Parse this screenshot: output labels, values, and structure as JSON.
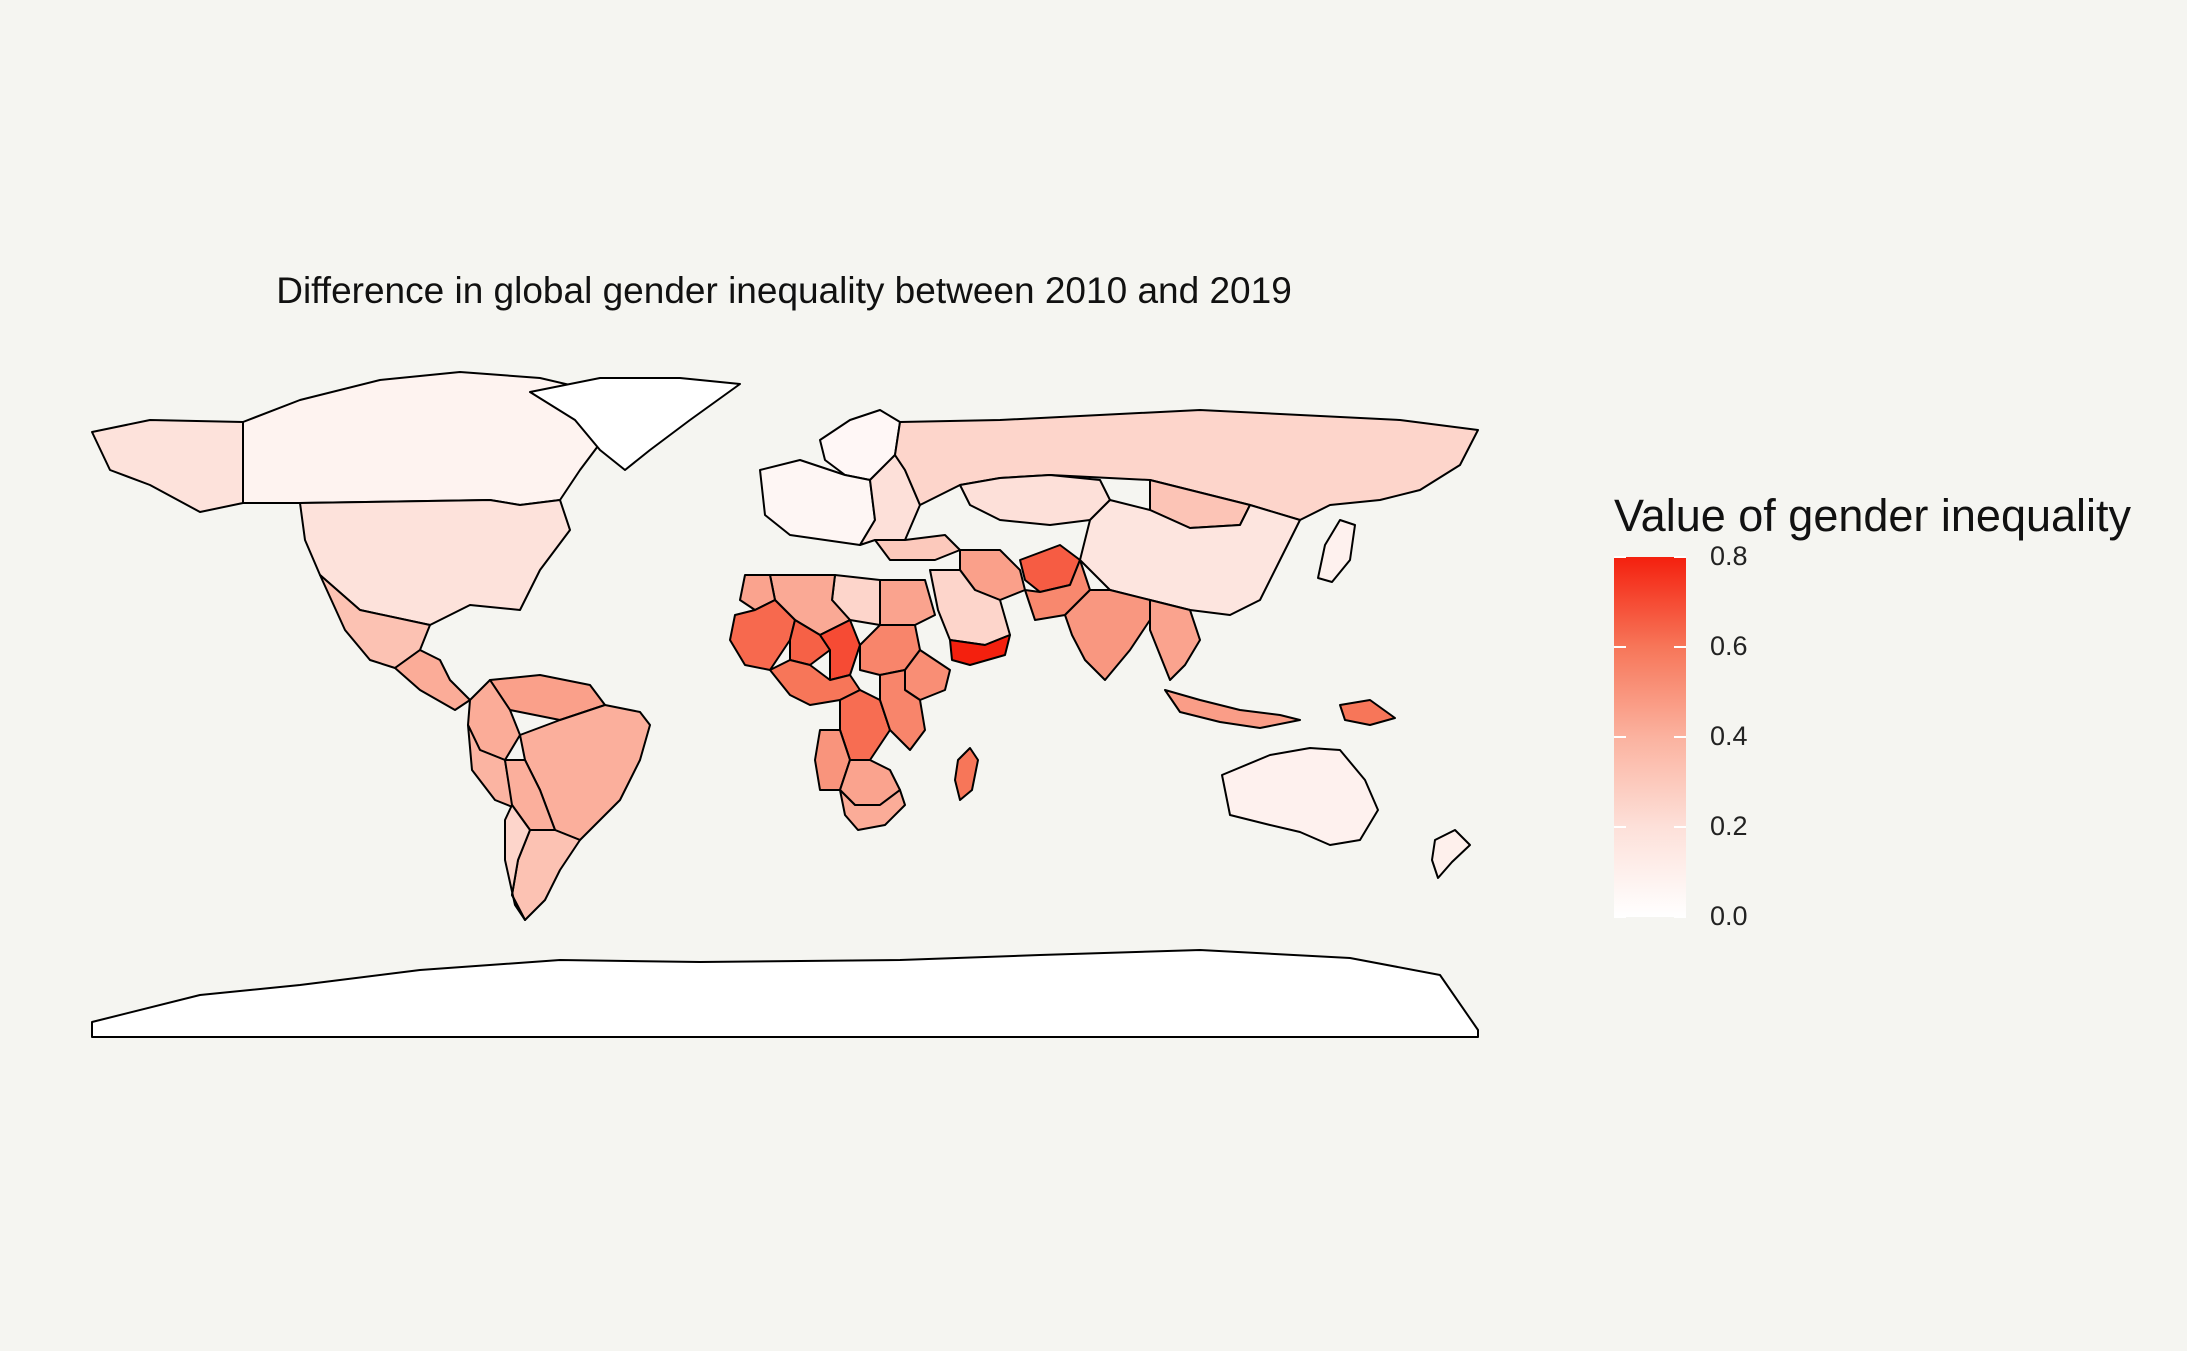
{
  "title": "Difference in global gender inequality between 2010 and 2019",
  "legend": {
    "title": "Value of gender inequality",
    "ticks": [
      "0.0",
      "0.2",
      "0.4",
      "0.6",
      "0.8"
    ],
    "range": [
      0,
      0.8
    ]
  },
  "colors": {
    "low": "#ffffff",
    "high": "#f4200e",
    "background": "#f5f5f1",
    "no_data": "#ffffff",
    "border": "#000000"
  },
  "regions": [
    {
      "name": "Canada",
      "value": 0.08
    },
    {
      "name": "Alaska",
      "value": 0.19
    },
    {
      "name": "Greenland",
      "value": null
    },
    {
      "name": "United States",
      "value": 0.19
    },
    {
      "name": "Mexico",
      "value": 0.33
    },
    {
      "name": "Central America",
      "value": 0.42
    },
    {
      "name": "Venezuela",
      "value": 0.46
    },
    {
      "name": "Colombia",
      "value": 0.42
    },
    {
      "name": "Brazil",
      "value": 0.41
    },
    {
      "name": "Peru",
      "value": 0.39
    },
    {
      "name": "Bolivia",
      "value": 0.41
    },
    {
      "name": "Argentina",
      "value": 0.33
    },
    {
      "name": "Chile",
      "value": 0.25
    },
    {
      "name": "Iceland / Nordics",
      "value": 0.05
    },
    {
      "name": "Western Europe",
      "value": 0.06
    },
    {
      "name": "Eastern Europe",
      "value": 0.2
    },
    {
      "name": "Russia",
      "value": 0.25
    },
    {
      "name": "Kazakhstan",
      "value": 0.2
    },
    {
      "name": "Mongolia",
      "value": 0.32
    },
    {
      "name": "China",
      "value": 0.17
    },
    {
      "name": "Turkey",
      "value": 0.3
    },
    {
      "name": "Iran",
      "value": 0.46
    },
    {
      "name": "Afghanistan",
      "value": 0.66
    },
    {
      "name": "Pakistan",
      "value": 0.54
    },
    {
      "name": "India",
      "value": 0.49
    },
    {
      "name": "Southeast Asia",
      "value": 0.45
    },
    {
      "name": "Indonesia",
      "value": 0.47
    },
    {
      "name": "Papua New Guinea",
      "value": 0.6
    },
    {
      "name": "Australia",
      "value": 0.09
    },
    {
      "name": "New Zealand",
      "value": 0.1
    },
    {
      "name": "Japan",
      "value": 0.09
    },
    {
      "name": "Saudi Arabia",
      "value": 0.25
    },
    {
      "name": "Yemen",
      "value": 0.8
    },
    {
      "name": "Egypt",
      "value": 0.45
    },
    {
      "name": "Libya",
      "value": 0.25
    },
    {
      "name": "Algeria",
      "value": 0.43
    },
    {
      "name": "Morocco",
      "value": 0.45
    },
    {
      "name": "West Africa",
      "value": 0.63
    },
    {
      "name": "Niger",
      "value": 0.65
    },
    {
      "name": "Chad",
      "value": 0.7
    },
    {
      "name": "Sudan",
      "value": 0.55
    },
    {
      "name": "Ethiopia",
      "value": 0.52
    },
    {
      "name": "Central Africa",
      "value": 0.6
    },
    {
      "name": "DR Congo",
      "value": 0.62
    },
    {
      "name": "East Africa",
      "value": 0.55
    },
    {
      "name": "Angola",
      "value": 0.5
    },
    {
      "name": "Southern Africa",
      "value": 0.45
    },
    {
      "name": "South Africa",
      "value": 0.42
    },
    {
      "name": "Madagascar",
      "value": 0.6
    },
    {
      "name": "Antarctica",
      "value": null
    }
  ]
}
